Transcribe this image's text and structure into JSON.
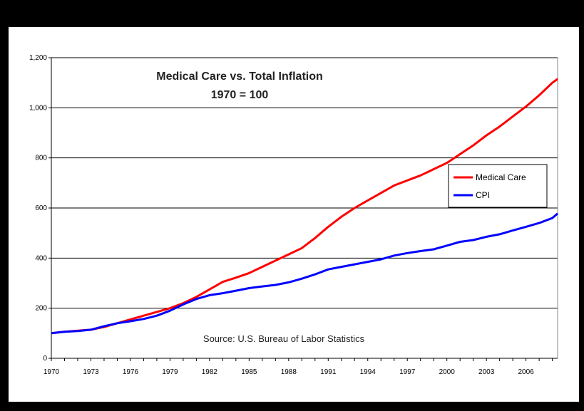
{
  "chart_data": {
    "type": "line",
    "title": "Medical Care vs. Total Inflation",
    "subtitle": "1970 = 100",
    "annotation": "Source: U.S. Bureau of Labor Statistics",
    "xlabel": "",
    "ylabel": "",
    "xlim": [
      1970,
      2008.4
    ],
    "ylim": [
      0,
      1200
    ],
    "x_ticks": [
      "1970",
      "1973",
      "1976",
      "1979",
      "1982",
      "1985",
      "1988",
      "1991",
      "1994",
      "1997",
      "2000",
      "2003",
      "2006"
    ],
    "y_ticks": [
      "0",
      "200",
      "400",
      "600",
      "800",
      "1,000",
      "1,200"
    ],
    "grid": "horizontal",
    "legend_position": "right",
    "x": [
      1970,
      1971,
      1972,
      1973,
      1974,
      1975,
      1976,
      1977,
      1978,
      1979,
      1980,
      1981,
      1982,
      1983,
      1984,
      1985,
      1986,
      1987,
      1988,
      1989,
      1990,
      1991,
      1992,
      1993,
      1994,
      1995,
      1996,
      1997,
      1998,
      1999,
      2000,
      2001,
      2002,
      2003,
      2004,
      2005,
      2006,
      2007,
      2008,
      2008.4
    ],
    "series": [
      {
        "name": "Medical Care",
        "color": "#ff0000",
        "values": [
          100,
          106,
          110,
          114,
          125,
          140,
          155,
          170,
          185,
          200,
          220,
          245,
          275,
          305,
          322,
          340,
          365,
          390,
          415,
          440,
          480,
          525,
          565,
          600,
          630,
          660,
          690,
          710,
          730,
          755,
          780,
          815,
          850,
          890,
          925,
          965,
          1005,
          1050,
          1100,
          1115
        ]
      },
      {
        "name": "CPI",
        "color": "#0000ff",
        "values": [
          100,
          106,
          109,
          114,
          128,
          140,
          148,
          157,
          170,
          190,
          215,
          237,
          252,
          260,
          270,
          280,
          287,
          293,
          303,
          318,
          335,
          355,
          365,
          375,
          385,
          395,
          410,
          420,
          428,
          435,
          450,
          465,
          472,
          485,
          495,
          510,
          525,
          540,
          560,
          578
        ]
      }
    ]
  }
}
